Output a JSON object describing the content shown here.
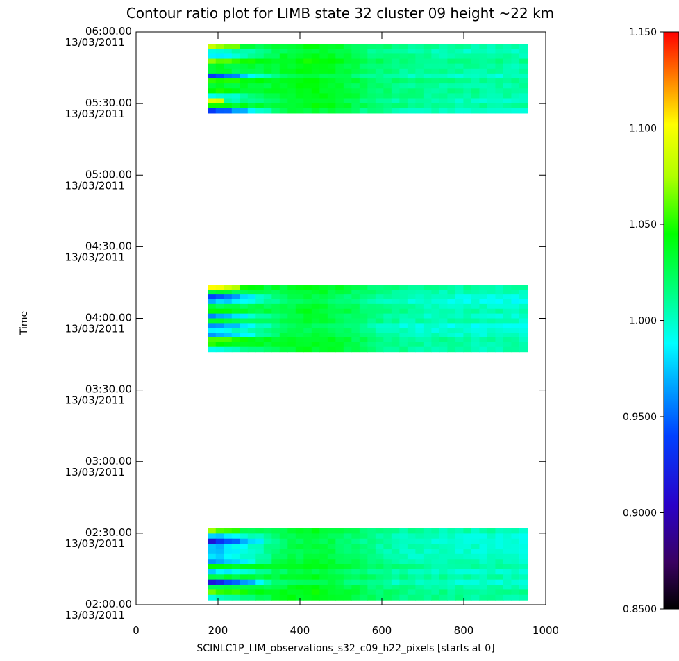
{
  "chart_data": {
    "type": "heatmap",
    "title": "Contour ratio plot for LIMB state 32 cluster 09 height ~22 km",
    "xlabel": "SCINLC1P_LIM_observations_s32_c09_h22_pixels [starts at 0]",
    "ylabel": "Time",
    "xlim": [
      0,
      1000
    ],
    "x_ticks": [
      "0",
      "200",
      "400",
      "600",
      "800",
      "1000"
    ],
    "x_tick_values": [
      0,
      200,
      400,
      600,
      800,
      1000
    ],
    "ylim_minutes": [
      120,
      360
    ],
    "y_ticks": [
      {
        "minutes": 360,
        "time": "06:00.00",
        "date": "13/03/2011"
      },
      {
        "minutes": 330,
        "time": "05:30.00",
        "date": "13/03/2011"
      },
      {
        "minutes": 300,
        "time": "05:00.00",
        "date": "13/03/2011"
      },
      {
        "minutes": 270,
        "time": "04:30.00",
        "date": "13/03/2011"
      },
      {
        "minutes": 240,
        "time": "04:00.00",
        "date": "13/03/2011"
      },
      {
        "minutes": 210,
        "time": "03:30.00",
        "date": "13/03/2011"
      },
      {
        "minutes": 180,
        "time": "03:00.00",
        "date": "13/03/2011"
      },
      {
        "minutes": 150,
        "time": "02:30.00",
        "date": "13/03/2011"
      },
      {
        "minutes": 120,
        "time": "02:00.00",
        "date": "13/03/2011"
      }
    ],
    "colorbar": {
      "min": 0.85,
      "max": 1.15,
      "ticks": [
        {
          "value": 1.15,
          "label": "1.150"
        },
        {
          "value": 1.1,
          "label": "1.100"
        },
        {
          "value": 1.05,
          "label": "1.050"
        },
        {
          "value": 1.0,
          "label": "1.000"
        },
        {
          "value": 0.95,
          "label": "0.9500"
        },
        {
          "value": 0.9,
          "label": "0.9000"
        },
        {
          "value": 0.85,
          "label": "0.8500"
        }
      ]
    },
    "blocks": [
      {
        "x_start": 175,
        "x_end": 955,
        "minutes_start": 326,
        "minutes_end": 355,
        "base": 1.015
      },
      {
        "x_start": 175,
        "x_end": 955,
        "minutes_start": 226,
        "minutes_end": 254,
        "base": 1.01
      },
      {
        "x_start": 175,
        "x_end": 955,
        "minutes_start": 122,
        "minutes_end": 152,
        "base": 1.015
      }
    ]
  }
}
